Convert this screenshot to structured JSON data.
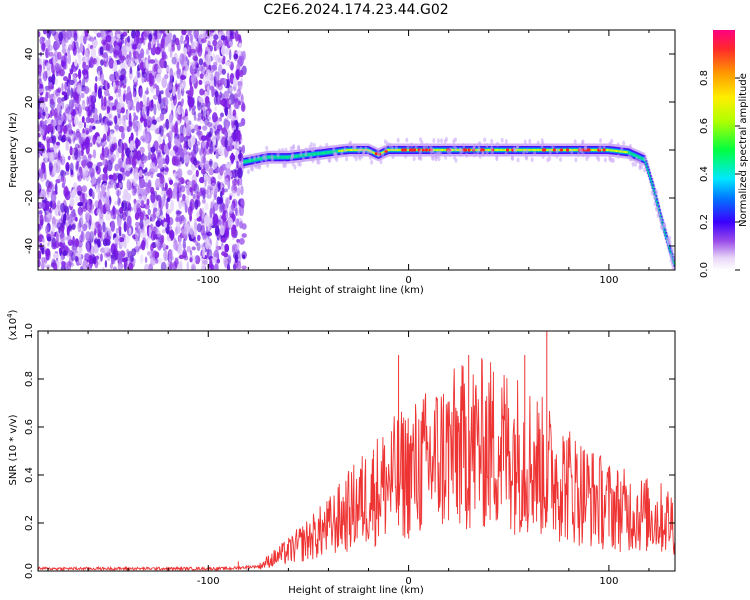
{
  "title": "C2E6.2024.174.23.44.G02",
  "chart_data": [
    {
      "type": "heatmap",
      "xlabel": "Height of straight line (km)",
      "ylabel": "Frequency (Hz)",
      "xlim": [
        -185,
        133
      ],
      "ylim": [
        -50,
        50
      ],
      "x_ticks": [
        -100,
        0,
        100
      ],
      "y_ticks": [
        -40,
        -20,
        0,
        20,
        40
      ],
      "colorbar": {
        "label": "Normalized spectral amplitude",
        "range": [
          0.0,
          1.0
        ],
        "ticks": [
          "0.0",
          "0.2",
          "0.4",
          "0.6",
          "0.8"
        ]
      },
      "ridge": {
        "x": [
          -82,
          -70,
          -60,
          -50,
          -40,
          -30,
          -20,
          -15,
          -10,
          0,
          20,
          40,
          60,
          80,
          100,
          110,
          118,
          122,
          126,
          130,
          133
        ],
        "y": [
          -5,
          -3,
          -3,
          -2,
          -1,
          0,
          0,
          -2,
          0,
          0,
          0,
          0,
          0,
          0,
          0,
          -1,
          -4,
          -15,
          -28,
          -40,
          -48
        ]
      },
      "noise_region_x": [
        -185,
        -82
      ],
      "noise_color": "#7a1ae6"
    },
    {
      "type": "line",
      "xlabel": "Height of straight line (km)",
      "ylabel": "SNR (10 * v/v)",
      "y_scale_label": "(x10",
      "y_scale_exp": "4",
      "y_scale_close": ")",
      "xlim": [
        -185,
        133
      ],
      "ylim": [
        0.0,
        1.0
      ],
      "x_ticks": [
        -100,
        0,
        100
      ],
      "y_ticks": [
        "0.0",
        "0.2",
        "0.4",
        "0.6",
        "0.8",
        "1.0"
      ],
      "series": [
        {
          "color": "#ee3333",
          "envelope": {
            "x": [
              -185,
              -90,
              -75,
              -70,
              -60,
              -50,
              -40,
              -30,
              -20,
              -10,
              0,
              10,
              20,
              30,
              40,
              50,
              60,
              70,
              80,
              90,
              100,
              110,
              120,
              133
            ],
            "y": [
              0.01,
              0.01,
              0.02,
              0.05,
              0.1,
              0.16,
              0.22,
              0.3,
              0.38,
              0.45,
              0.5,
              0.55,
              0.6,
              0.63,
              0.64,
              0.62,
              0.57,
              0.5,
              0.44,
              0.38,
              0.33,
              0.3,
              0.28,
              0.25
            ]
          },
          "peaks": [
            {
              "x": -85,
              "y": 0.04
            },
            {
              "x": -5,
              "y": 0.9
            },
            {
              "x": 30,
              "y": 0.9
            },
            {
              "x": 58,
              "y": 0.9
            },
            {
              "x": 69,
              "y": 1.0
            }
          ]
        }
      ]
    }
  ]
}
